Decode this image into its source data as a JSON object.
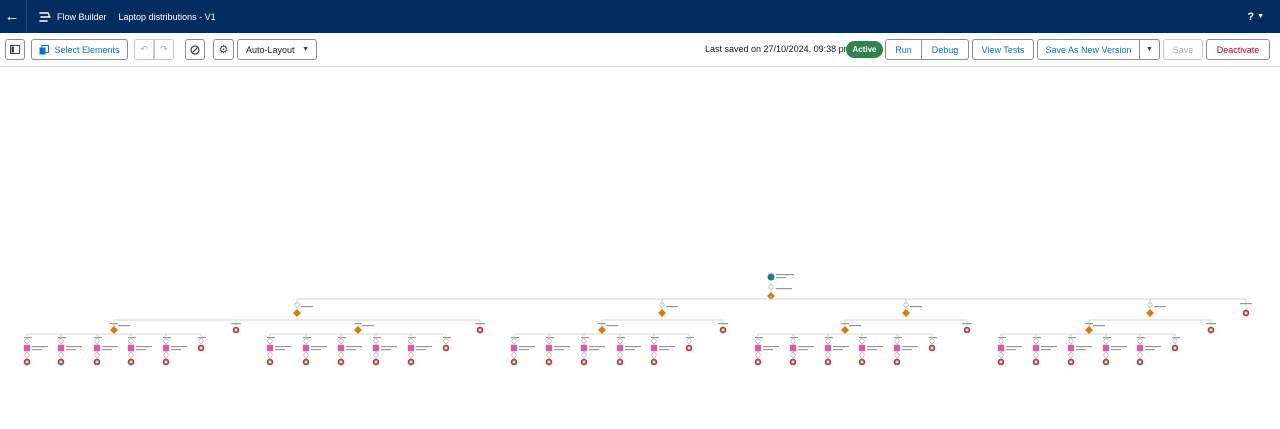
{
  "header": {
    "back_label": "←",
    "app_name": "Flow Builder",
    "flow_title": "Laptop distributions - V1",
    "help_label": "?"
  },
  "toolbar": {
    "select_elements": "Select Elements",
    "layout_mode": "Auto-Layout",
    "last_saved": "Last saved on 27/10/2024, 09:38 pm",
    "status": "Active",
    "run": "Run",
    "debug": "Debug",
    "view_tests": "View Tests",
    "save_as_new_version": "Save As New Version",
    "save": "Save",
    "deactivate": "Deactivate"
  },
  "colors": {
    "header_bg": "#032d60",
    "accent": "#0176d3",
    "active_badge": "#2e844a",
    "decision": "#dd7a01",
    "action": "#c23934",
    "start": "#0b827c",
    "connector": "#c9c9c9"
  },
  "flow": {
    "start_icon": "start-icon",
    "decision_icon": "decision-diamond-icon",
    "assignment_icon": "assignment-icon",
    "end_icon": "end-icon",
    "top_branch_count": 5,
    "sub_branch_count": 5
  }
}
